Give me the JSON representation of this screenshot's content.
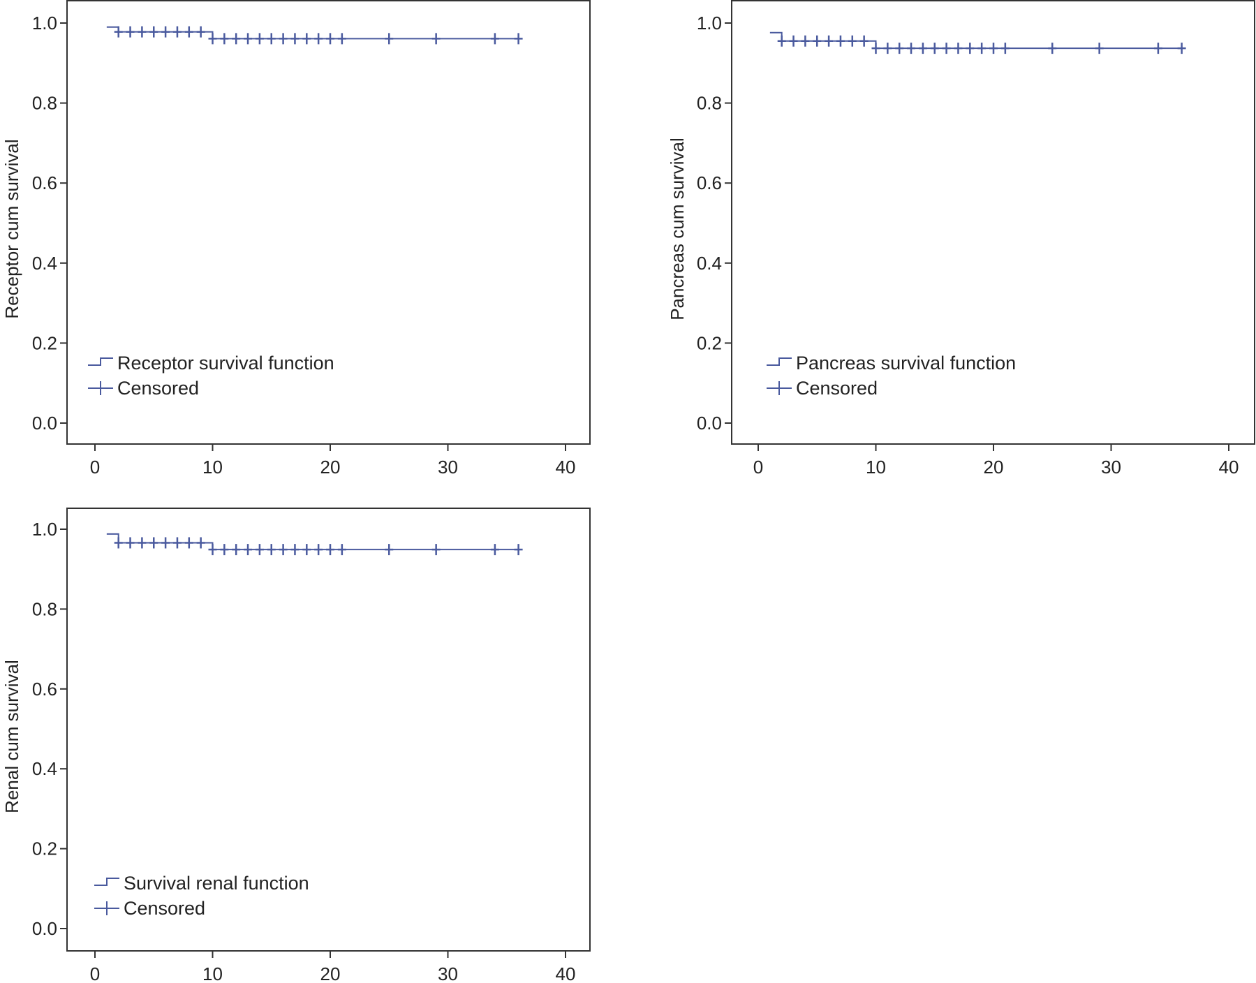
{
  "colors": {
    "line": "#4a5a9e",
    "axis": "#333333",
    "text": "#222222"
  },
  "icons": {
    "legend_step": "step-line-icon",
    "legend_censor": "plus-mark-icon"
  },
  "chart_data": [
    {
      "type": "line",
      "ylabel": "Receptor cum survival",
      "xlabel": "",
      "xlim": [
        0,
        40
      ],
      "ylim": [
        0,
        1
      ],
      "x_ticks": [
        "0",
        "10",
        "20",
        "30",
        "40"
      ],
      "y_ticks": [
        "0.0",
        "0.2",
        "0.4",
        "0.6",
        "0.8",
        "1.0"
      ],
      "grid": false,
      "legend_position": "bottom-left",
      "legend": [
        "Receptor survival function",
        "Censored"
      ],
      "series": [
        {
          "name": "Receptor survival function",
          "steps": [
            [
              1,
              0.99
            ],
            [
              2,
              0.978
            ],
            [
              10,
              0.961
            ],
            [
              36,
              0.961
            ]
          ],
          "censored": [
            [
              2,
              0.978
            ],
            [
              3,
              0.978
            ],
            [
              4,
              0.978
            ],
            [
              5,
              0.978
            ],
            [
              6,
              0.978
            ],
            [
              7,
              0.978
            ],
            [
              8,
              0.978
            ],
            [
              9,
              0.978
            ],
            [
              10,
              0.961
            ],
            [
              11,
              0.961
            ],
            [
              12,
              0.961
            ],
            [
              13,
              0.961
            ],
            [
              14,
              0.961
            ],
            [
              15,
              0.961
            ],
            [
              16,
              0.961
            ],
            [
              17,
              0.961
            ],
            [
              18,
              0.961
            ],
            [
              19,
              0.961
            ],
            [
              20,
              0.961
            ],
            [
              21,
              0.961
            ],
            [
              25,
              0.961
            ],
            [
              29,
              0.961
            ],
            [
              34,
              0.961
            ],
            [
              36,
              0.961
            ]
          ]
        }
      ]
    },
    {
      "type": "line",
      "ylabel": "Pancreas cum survival",
      "xlabel": "",
      "xlim": [
        0,
        40
      ],
      "ylim": [
        0,
        1
      ],
      "x_ticks": [
        "0",
        "10",
        "20",
        "30",
        "40"
      ],
      "y_ticks": [
        "0.0",
        "0.2",
        "0.4",
        "0.6",
        "0.8",
        "1.0"
      ],
      "grid": false,
      "legend_position": "bottom-left",
      "legend": [
        "Pancreas survival function",
        "Censored"
      ],
      "series": [
        {
          "name": "Pancreas survival function",
          "steps": [
            [
              1,
              0.976
            ],
            [
              2,
              0.955
            ],
            [
              10,
              0.937
            ],
            [
              36,
              0.937
            ]
          ],
          "censored": [
            [
              2,
              0.955
            ],
            [
              3,
              0.955
            ],
            [
              4,
              0.955
            ],
            [
              5,
              0.955
            ],
            [
              6,
              0.955
            ],
            [
              7,
              0.955
            ],
            [
              8,
              0.955
            ],
            [
              9,
              0.955
            ],
            [
              10,
              0.937
            ],
            [
              11,
              0.937
            ],
            [
              12,
              0.937
            ],
            [
              13,
              0.937
            ],
            [
              14,
              0.937
            ],
            [
              15,
              0.937
            ],
            [
              16,
              0.937
            ],
            [
              17,
              0.937
            ],
            [
              18,
              0.937
            ],
            [
              19,
              0.937
            ],
            [
              20,
              0.937
            ],
            [
              21,
              0.937
            ],
            [
              25,
              0.937
            ],
            [
              29,
              0.937
            ],
            [
              34,
              0.937
            ],
            [
              36,
              0.937
            ]
          ]
        }
      ]
    },
    {
      "type": "line",
      "ylabel": "Renal cum survival",
      "xlabel": "",
      "xlim": [
        0,
        40
      ],
      "ylim": [
        0,
        1
      ],
      "x_ticks": [
        "0",
        "10",
        "20",
        "30",
        "40"
      ],
      "y_ticks": [
        "0.0",
        "0.2",
        "0.4",
        "0.6",
        "0.8",
        "1.0"
      ],
      "grid": false,
      "legend_position": "bottom-left",
      "legend": [
        "Survival renal function",
        "Censored"
      ],
      "series": [
        {
          "name": "Survival renal function",
          "steps": [
            [
              1,
              0.988
            ],
            [
              2,
              0.966
            ],
            [
              10,
              0.949
            ],
            [
              36,
              0.949
            ]
          ],
          "censored": [
            [
              2,
              0.966
            ],
            [
              3,
              0.966
            ],
            [
              4,
              0.966
            ],
            [
              5,
              0.966
            ],
            [
              6,
              0.966
            ],
            [
              7,
              0.966
            ],
            [
              8,
              0.966
            ],
            [
              9,
              0.966
            ],
            [
              10,
              0.949
            ],
            [
              11,
              0.949
            ],
            [
              12,
              0.949
            ],
            [
              13,
              0.949
            ],
            [
              14,
              0.949
            ],
            [
              15,
              0.949
            ],
            [
              16,
              0.949
            ],
            [
              17,
              0.949
            ],
            [
              18,
              0.949
            ],
            [
              19,
              0.949
            ],
            [
              20,
              0.949
            ],
            [
              21,
              0.949
            ],
            [
              25,
              0.949
            ],
            [
              29,
              0.949
            ],
            [
              34,
              0.949
            ],
            [
              36,
              0.949
            ]
          ]
        }
      ]
    }
  ]
}
